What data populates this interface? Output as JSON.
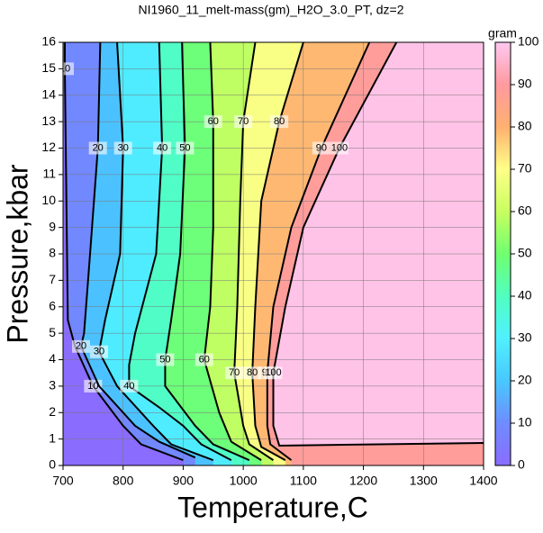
{
  "chart_data": {
    "type": "contour",
    "title": "NI1960_11_melt-mass(gm)_H2O_3.0_PT, dz=2",
    "x_label": "Temperature,C",
    "y_label": "Pressure,kbar",
    "xlim": [
      700,
      1400
    ],
    "ylim": [
      0,
      16
    ],
    "xticks": [
      700,
      800,
      900,
      1000,
      1100,
      1200,
      1300,
      1400
    ],
    "yticks": [
      0,
      1,
      2,
      3,
      4,
      5,
      6,
      7,
      8,
      9,
      10,
      11,
      12,
      13,
      14,
      15,
      16
    ],
    "grid": true,
    "colorbar": {
      "label": "gram",
      "lim": [
        0,
        100
      ],
      "ticks": [
        0,
        10,
        20,
        30,
        40,
        50,
        60,
        70,
        80,
        90,
        100
      ],
      "colors": [
        "#8a6cff",
        "#6f8cff",
        "#48c8ff",
        "#50f0ff",
        "#50ffc0",
        "#70ff70",
        "#c8ff60",
        "#ffff88",
        "#ffb070",
        "#ff9aa0",
        "#ffc8f0"
      ]
    },
    "contours": [
      {
        "level": 10,
        "x": [
          703,
          703,
          708,
          720,
          750,
          800,
          830,
          900
        ],
        "y": [
          16,
          15,
          5.5,
          4.5,
          3,
          1.5,
          0.8,
          0.2
        ]
      },
      {
        "level": 20,
        "x": [
          762,
          758,
          745,
          735,
          730,
          760,
          820,
          860,
          920
        ],
        "y": [
          16,
          12,
          8,
          5,
          4.5,
          3,
          1.5,
          0.9,
          0.3
        ]
      },
      {
        "level": 30,
        "x": [
          790,
          800,
          795,
          770,
          760,
          790,
          850,
          880,
          950
        ],
        "y": [
          16,
          12,
          8,
          5.5,
          4.3,
          3,
          1.5,
          0.8,
          0.2
        ]
      },
      {
        "level": 40,
        "x": [
          860,
          865,
          855,
          820,
          810,
          810,
          860,
          900,
          930,
          980
        ],
        "y": [
          16,
          12,
          8,
          5,
          3.8,
          3,
          2.2,
          1.5,
          0.8,
          0.2
        ]
      },
      {
        "level": 50,
        "x": [
          898,
          903,
          895,
          880,
          870,
          870,
          920,
          950,
          1010
        ],
        "y": [
          16,
          12,
          8,
          5.5,
          4,
          3,
          1.5,
          0.8,
          0.2
        ]
      },
      {
        "level": 60,
        "x": [
          945,
          950,
          950,
          945,
          935,
          960,
          980,
          1030
        ],
        "y": [
          16,
          13,
          9,
          6,
          4,
          2,
          0.9,
          0.2
        ]
      },
      {
        "level": 70,
        "x": [
          1020,
          1000,
          995,
          990,
          985,
          1000,
          1010,
          1050
        ],
        "y": [
          16,
          13,
          10,
          6,
          3.5,
          1.5,
          0.8,
          0.2
        ]
      },
      {
        "level": 80,
        "x": [
          1100,
          1060,
          1030,
          1020,
          1015,
          1020,
          1030,
          1070
        ],
        "y": [
          16,
          13,
          10,
          6,
          3.5,
          1.5,
          0.7,
          0.2
        ]
      },
      {
        "level": 90,
        "x": [
          1210,
          1130,
          1080,
          1050,
          1040,
          1040,
          1045,
          1080
        ],
        "y": [
          16,
          12,
          9,
          6,
          3.5,
          1.5,
          0.8,
          0.2
        ]
      },
      {
        "level": 100,
        "x": [
          1255,
          1160,
          1100,
          1070,
          1050,
          1050,
          1060,
          1400
        ],
        "y": [
          16,
          12,
          9,
          6,
          3.5,
          1.5,
          0.75,
          0.85
        ]
      }
    ]
  }
}
